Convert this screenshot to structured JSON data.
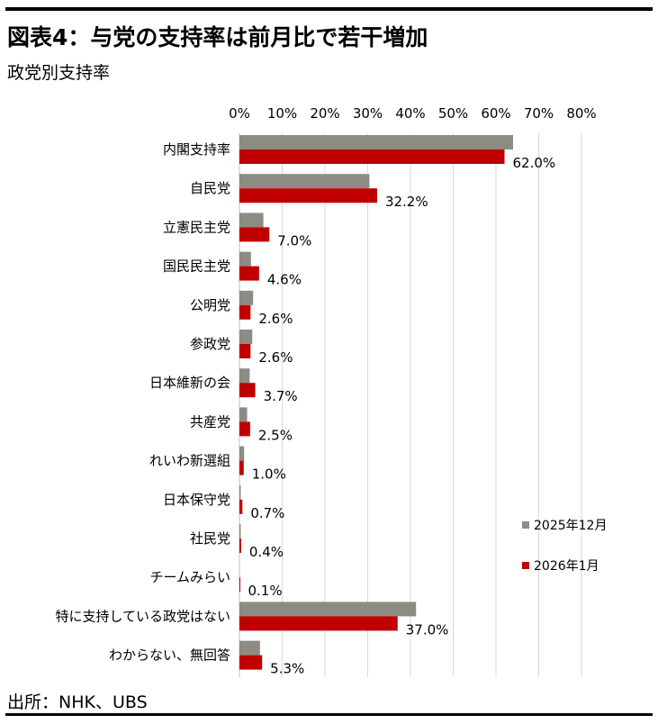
{
  "header": {
    "title": "図表4：与党の支持率は前月比で若干増加",
    "subtitle": "政党別支持率"
  },
  "footer": {
    "source": "出所：NHK、UBS"
  },
  "colors": {
    "series_2025_12": "#8c8c84",
    "series_2026_01": "#c00000",
    "grid": "#d9d9d9"
  },
  "chart_data": {
    "type": "bar",
    "orientation": "horizontal",
    "title": "",
    "xlabel": "",
    "ylabel": "",
    "xlim": [
      0,
      80
    ],
    "x_ticks": [
      "0%",
      "10%",
      "20%",
      "30%",
      "40%",
      "50%",
      "60%",
      "70%",
      "80%"
    ],
    "grid": true,
    "legend_position": "right",
    "categories": [
      "内閣支持率",
      "自民党",
      "立憲民主党",
      "国民民主党",
      "公明党",
      "参政党",
      "日本維新の会",
      "共産党",
      "れいわ新選組",
      "日本保守党",
      "社民党",
      "チームみらい",
      "特に支持している政党はない",
      "わからない、無回答"
    ],
    "series": [
      {
        "name": "2025年12月",
        "values": [
          64.0,
          30.4,
          5.6,
          2.7,
          3.2,
          3.0,
          2.4,
          1.8,
          1.1,
          0.3,
          0.3,
          0.0,
          41.3,
          4.8
        ]
      },
      {
        "name": "2026年1月",
        "values": [
          62.0,
          32.2,
          7.0,
          4.6,
          2.6,
          2.6,
          3.7,
          2.5,
          1.0,
          0.7,
          0.4,
          0.1,
          37.0,
          5.3
        ]
      }
    ],
    "data_labels": [
      "62.0%",
      "32.2%",
      "7.0%",
      "4.6%",
      "2.6%",
      "2.6%",
      "3.7%",
      "2.5%",
      "1.0%",
      "0.7%",
      "0.4%",
      "0.1%",
      "37.0%",
      "5.3%"
    ]
  }
}
